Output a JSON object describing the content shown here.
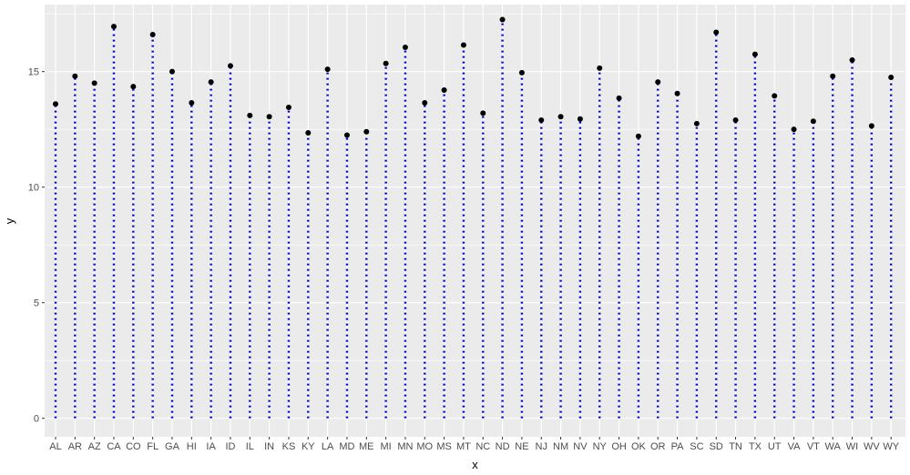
{
  "chart_data": {
    "type": "lollipop",
    "title": "",
    "xlabel": "x",
    "ylabel": "y",
    "ylim": [
      -0.8,
      17.9
    ],
    "yticks": [
      0,
      5,
      10,
      15
    ],
    "ytick_labels": [
      "0",
      "5",
      "10",
      "15"
    ],
    "grid": true,
    "stem_color": "#0000cc",
    "point_color": "#000000",
    "panel_color": "#ebebeb",
    "grid_color": "#ffffff",
    "categories": [
      "AL",
      "AR",
      "AZ",
      "CA",
      "CO",
      "FL",
      "GA",
      "HI",
      "IA",
      "ID",
      "IL",
      "IN",
      "KS",
      "KY",
      "LA",
      "MD",
      "ME",
      "MI",
      "MN",
      "MO",
      "MS",
      "MT",
      "NC",
      "ND",
      "NE",
      "NJ",
      "NM",
      "NV",
      "NY",
      "OH",
      "OK",
      "OR",
      "PA",
      "SC",
      "SD",
      "TN",
      "TX",
      "UT",
      "VA",
      "VT",
      "WA",
      "WI",
      "WV",
      "WY"
    ],
    "values": [
      13.6,
      14.8,
      14.5,
      16.95,
      14.35,
      16.6,
      15.0,
      13.65,
      14.55,
      15.25,
      13.1,
      13.05,
      13.45,
      12.35,
      15.1,
      12.25,
      12.4,
      15.35,
      16.05,
      13.65,
      14.2,
      16.15,
      13.2,
      17.25,
      14.95,
      12.9,
      13.05,
      12.95,
      15.15,
      13.85,
      12.2,
      14.55,
      14.05,
      12.75,
      16.7,
      12.9,
      15.75,
      13.95,
      12.5,
      12.85,
      14.8,
      15.5,
      12.65,
      14.75
    ]
  }
}
